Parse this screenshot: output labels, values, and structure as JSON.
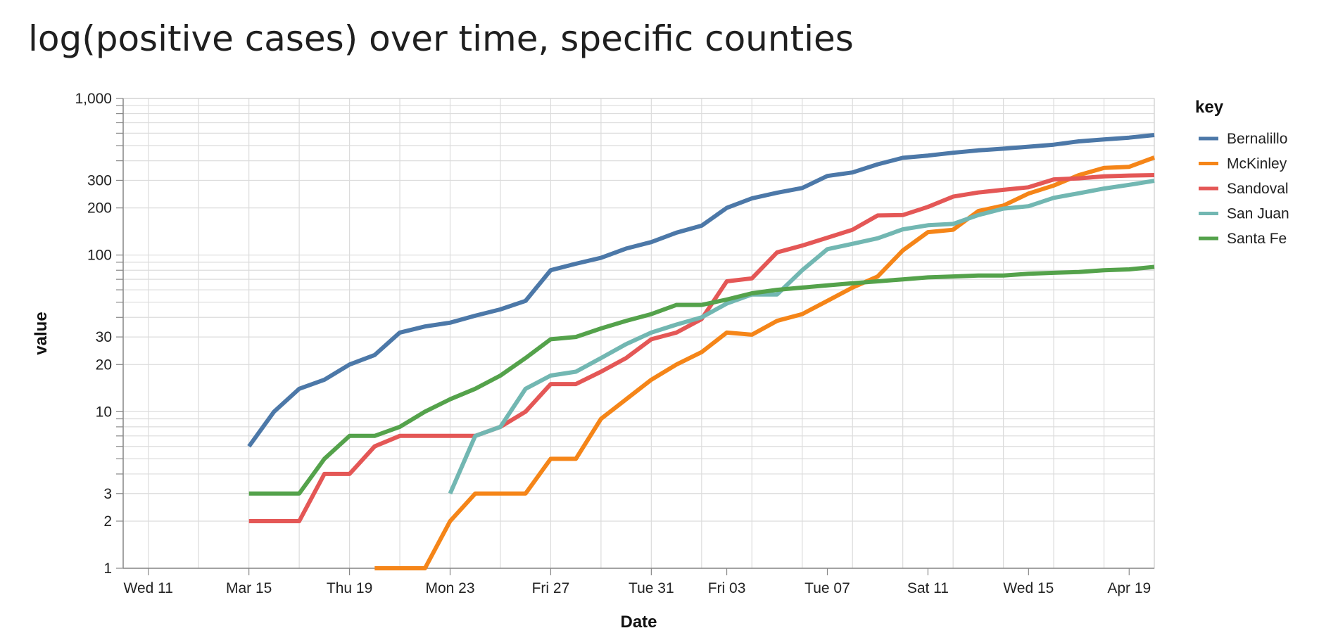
{
  "chart_data": {
    "type": "line",
    "title": "log(positive cases) over time, specific counties",
    "xlabel": "Date",
    "ylabel": "value",
    "yscale": "log",
    "ylim": [
      1,
      1000
    ],
    "xlim": [
      "2020-03-10",
      "2020-04-20"
    ],
    "grid": true,
    "legend": {
      "title": "key",
      "position": "right"
    },
    "x_ticks": [
      {
        "date": "2020-03-11",
        "label": "Wed 11"
      },
      {
        "date": "2020-03-15",
        "label": "Mar 15"
      },
      {
        "date": "2020-03-19",
        "label": "Thu 19"
      },
      {
        "date": "2020-03-23",
        "label": "Mon 23"
      },
      {
        "date": "2020-03-27",
        "label": "Fri 27"
      },
      {
        "date": "2020-03-31",
        "label": "Tue 31"
      },
      {
        "date": "2020-04-03",
        "label": "Fri 03"
      },
      {
        "date": "2020-04-07",
        "label": "Tue 07"
      },
      {
        "date": "2020-04-11",
        "label": "Sat 11"
      },
      {
        "date": "2020-04-15",
        "label": "Wed 15"
      },
      {
        "date": "2020-04-19",
        "label": "Apr 19"
      }
    ],
    "y_ticks": [
      {
        "value": 1,
        "label": "1"
      },
      {
        "value": 2,
        "label": "2"
      },
      {
        "value": 3,
        "label": "3"
      },
      {
        "value": 10,
        "label": "10"
      },
      {
        "value": 20,
        "label": "20"
      },
      {
        "value": 30,
        "label": "30"
      },
      {
        "value": 100,
        "label": "100"
      },
      {
        "value": 200,
        "label": "200"
      },
      {
        "value": 300,
        "label": "300"
      },
      {
        "value": 1000,
        "label": "1,000"
      }
    ],
    "series": [
      {
        "name": "Bernalillo",
        "color": "#4c78a8",
        "points": [
          [
            "2020-03-15",
            6
          ],
          [
            "2020-03-16",
            10
          ],
          [
            "2020-03-17",
            14
          ],
          [
            "2020-03-18",
            16
          ],
          [
            "2020-03-19",
            20
          ],
          [
            "2020-03-20",
            23
          ],
          [
            "2020-03-21",
            32
          ],
          [
            "2020-03-22",
            35
          ],
          [
            "2020-03-23",
            37
          ],
          [
            "2020-03-24",
            41
          ],
          [
            "2020-03-25",
            45
          ],
          [
            "2020-03-26",
            51
          ],
          [
            "2020-03-27",
            80
          ],
          [
            "2020-03-28",
            88
          ],
          [
            "2020-03-29",
            96
          ],
          [
            "2020-03-30",
            110
          ],
          [
            "2020-03-31",
            121
          ],
          [
            "2020-04-01",
            139
          ],
          [
            "2020-04-02",
            154
          ],
          [
            "2020-04-03",
            200
          ],
          [
            "2020-04-04",
            230
          ],
          [
            "2020-04-05",
            250
          ],
          [
            "2020-04-06",
            268
          ],
          [
            "2020-04-07",
            320
          ],
          [
            "2020-04-08",
            337
          ],
          [
            "2020-04-09",
            380
          ],
          [
            "2020-04-10",
            418
          ],
          [
            "2020-04-11",
            432
          ],
          [
            "2020-04-12",
            450
          ],
          [
            "2020-04-13",
            466
          ],
          [
            "2020-04-14",
            478
          ],
          [
            "2020-04-15",
            492
          ],
          [
            "2020-04-16",
            507
          ],
          [
            "2020-04-17",
            532
          ],
          [
            "2020-04-18",
            548
          ],
          [
            "2020-04-19",
            562
          ],
          [
            "2020-04-20",
            584
          ]
        ]
      },
      {
        "name": "McKinley",
        "color": "#f58518",
        "points": [
          [
            "2020-03-20",
            1
          ],
          [
            "2020-03-21",
            1
          ],
          [
            "2020-03-22",
            1
          ],
          [
            "2020-03-23",
            2
          ],
          [
            "2020-03-24",
            3
          ],
          [
            "2020-03-25",
            3
          ],
          [
            "2020-03-26",
            3
          ],
          [
            "2020-03-27",
            5
          ],
          [
            "2020-03-28",
            5
          ],
          [
            "2020-03-29",
            9
          ],
          [
            "2020-03-30",
            12
          ],
          [
            "2020-03-31",
            16
          ],
          [
            "2020-04-01",
            20
          ],
          [
            "2020-04-02",
            24
          ],
          [
            "2020-04-03",
            32
          ],
          [
            "2020-04-04",
            31
          ],
          [
            "2020-04-05",
            38
          ],
          [
            "2020-04-06",
            42
          ],
          [
            "2020-04-07",
            51
          ],
          [
            "2020-04-08",
            62
          ],
          [
            "2020-04-09",
            73
          ],
          [
            "2020-04-10",
            107
          ],
          [
            "2020-04-11",
            140
          ],
          [
            "2020-04-12",
            145
          ],
          [
            "2020-04-13",
            191
          ],
          [
            "2020-04-14",
            207
          ],
          [
            "2020-04-15",
            247
          ],
          [
            "2020-04-16",
            278
          ],
          [
            "2020-04-17",
            324
          ],
          [
            "2020-04-18",
            360
          ],
          [
            "2020-04-19",
            366
          ],
          [
            "2020-04-20",
            420
          ]
        ]
      },
      {
        "name": "Sandoval",
        "color": "#e45756",
        "points": [
          [
            "2020-03-15",
            2
          ],
          [
            "2020-03-16",
            2
          ],
          [
            "2020-03-17",
            2
          ],
          [
            "2020-03-18",
            4
          ],
          [
            "2020-03-19",
            4
          ],
          [
            "2020-03-20",
            6
          ],
          [
            "2020-03-21",
            7
          ],
          [
            "2020-03-22",
            7
          ],
          [
            "2020-03-23",
            7
          ],
          [
            "2020-03-24",
            7
          ],
          [
            "2020-03-25",
            8
          ],
          [
            "2020-03-26",
            10
          ],
          [
            "2020-03-27",
            15
          ],
          [
            "2020-03-28",
            15
          ],
          [
            "2020-03-29",
            18
          ],
          [
            "2020-03-30",
            22
          ],
          [
            "2020-03-31",
            29
          ],
          [
            "2020-04-01",
            32
          ],
          [
            "2020-04-02",
            39
          ],
          [
            "2020-04-03",
            68
          ],
          [
            "2020-04-04",
            71
          ],
          [
            "2020-04-05",
            104
          ],
          [
            "2020-04-06",
            115
          ],
          [
            "2020-04-07",
            129
          ],
          [
            "2020-04-08",
            145
          ],
          [
            "2020-04-09",
            179
          ],
          [
            "2020-04-10",
            180
          ],
          [
            "2020-04-11",
            203
          ],
          [
            "2020-04-12",
            236
          ],
          [
            "2020-04-13",
            251
          ],
          [
            "2020-04-14",
            261
          ],
          [
            "2020-04-15",
            271
          ],
          [
            "2020-04-16",
            304
          ],
          [
            "2020-04-17",
            309
          ],
          [
            "2020-04-18",
            318
          ],
          [
            "2020-04-19",
            322
          ],
          [
            "2020-04-20",
            324
          ]
        ]
      },
      {
        "name": "San Juan",
        "color": "#72b7b2",
        "points": [
          [
            "2020-03-23",
            3
          ],
          [
            "2020-03-24",
            7
          ],
          [
            "2020-03-25",
            8
          ],
          [
            "2020-03-26",
            14
          ],
          [
            "2020-03-27",
            17
          ],
          [
            "2020-03-28",
            18
          ],
          [
            "2020-03-29",
            22
          ],
          [
            "2020-03-30",
            27
          ],
          [
            "2020-03-31",
            32
          ],
          [
            "2020-04-01",
            36
          ],
          [
            "2020-04-02",
            40
          ],
          [
            "2020-04-03",
            49
          ],
          [
            "2020-04-04",
            56
          ],
          [
            "2020-04-05",
            56
          ],
          [
            "2020-04-06",
            80
          ],
          [
            "2020-04-07",
            109
          ],
          [
            "2020-04-08",
            118
          ],
          [
            "2020-04-09",
            128
          ],
          [
            "2020-04-10",
            146
          ],
          [
            "2020-04-11",
            155
          ],
          [
            "2020-04-12",
            158
          ],
          [
            "2020-04-13",
            180
          ],
          [
            "2020-04-14",
            198
          ],
          [
            "2020-04-15",
            205
          ],
          [
            "2020-04-16",
            232
          ],
          [
            "2020-04-17",
            248
          ],
          [
            "2020-04-18",
            266
          ],
          [
            "2020-04-19",
            281
          ],
          [
            "2020-04-20",
            298
          ]
        ]
      },
      {
        "name": "Santa Fe",
        "color": "#54a24b",
        "points": [
          [
            "2020-03-15",
            3
          ],
          [
            "2020-03-16",
            3
          ],
          [
            "2020-03-17",
            3
          ],
          [
            "2020-03-18",
            5
          ],
          [
            "2020-03-19",
            7
          ],
          [
            "2020-03-20",
            7
          ],
          [
            "2020-03-21",
            8
          ],
          [
            "2020-03-22",
            10
          ],
          [
            "2020-03-23",
            12
          ],
          [
            "2020-03-24",
            14
          ],
          [
            "2020-03-25",
            17
          ],
          [
            "2020-03-26",
            22
          ],
          [
            "2020-03-27",
            29
          ],
          [
            "2020-03-28",
            30
          ],
          [
            "2020-03-29",
            34
          ],
          [
            "2020-03-30",
            38
          ],
          [
            "2020-03-31",
            42
          ],
          [
            "2020-04-01",
            48
          ],
          [
            "2020-04-02",
            48
          ],
          [
            "2020-04-03",
            52
          ],
          [
            "2020-04-04",
            57
          ],
          [
            "2020-04-05",
            60
          ],
          [
            "2020-04-06",
            62
          ],
          [
            "2020-04-07",
            64
          ],
          [
            "2020-04-08",
            66
          ],
          [
            "2020-04-09",
            68
          ],
          [
            "2020-04-10",
            70
          ],
          [
            "2020-04-11",
            72
          ],
          [
            "2020-04-12",
            73
          ],
          [
            "2020-04-13",
            74
          ],
          [
            "2020-04-14",
            74
          ],
          [
            "2020-04-15",
            76
          ],
          [
            "2020-04-16",
            77
          ],
          [
            "2020-04-17",
            78
          ],
          [
            "2020-04-18",
            80
          ],
          [
            "2020-04-19",
            81
          ],
          [
            "2020-04-20",
            84
          ]
        ]
      }
    ]
  }
}
